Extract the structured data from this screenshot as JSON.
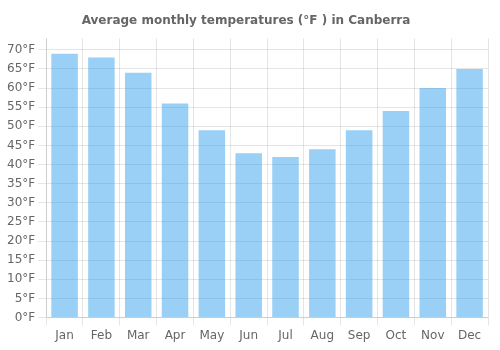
{
  "chart_data": {
    "type": "bar",
    "title": "Average monthly temperatures (°F ) in Canberra",
    "categories": [
      "Jan",
      "Feb",
      "Mar",
      "Apr",
      "May",
      "Jun",
      "Jul",
      "Aug",
      "Sep",
      "Oct",
      "Nov",
      "Dec"
    ],
    "values": [
      69,
      68,
      64,
      56,
      49,
      43,
      42,
      44,
      49,
      54,
      60,
      65
    ],
    "ylim": [
      0,
      73
    ],
    "yticks": [
      {
        "value": 0,
        "label": "0°F"
      },
      {
        "value": 5,
        "label": "5°F"
      },
      {
        "value": 10,
        "label": "10°F"
      },
      {
        "value": 15,
        "label": "15°F"
      },
      {
        "value": 20,
        "label": "20°F"
      },
      {
        "value": 25,
        "label": "25°F"
      },
      {
        "value": 30,
        "label": "30°F"
      },
      {
        "value": 35,
        "label": "35°F"
      },
      {
        "value": 40,
        "label": "40°F"
      },
      {
        "value": 45,
        "label": "45°F"
      },
      {
        "value": 50,
        "label": "50°F"
      },
      {
        "value": 55,
        "label": "55°F"
      },
      {
        "value": 60,
        "label": "60°F"
      },
      {
        "value": 65,
        "label": "65°F"
      },
      {
        "value": 70,
        "label": "70°F"
      }
    ],
    "grid": true
  }
}
